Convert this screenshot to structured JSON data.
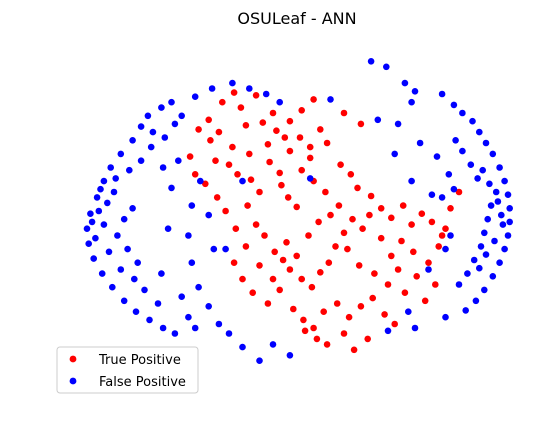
{
  "chart_data": {
    "type": "scatter",
    "title": "OSULeaf - ANN",
    "xlabel": "",
    "ylabel": "",
    "axes_visible": false,
    "grid": false,
    "legend_position": "bottom-left",
    "series": [
      {
        "name": "True Positive",
        "color": "#ff0000",
        "points": [
          [
            -0.42,
            0.88
          ],
          [
            -0.31,
            0.84
          ],
          [
            -0.28,
            0.71
          ],
          [
            -0.18,
            0.73
          ],
          [
            -0.1,
            0.67
          ],
          [
            -0.05,
            0.62
          ],
          [
            0.04,
            0.62
          ],
          [
            0.1,
            0.55
          ],
          [
            0.16,
            0.68
          ],
          [
            0.2,
            0.58
          ],
          [
            -0.49,
            0.6
          ],
          [
            -0.46,
            0.45
          ],
          [
            -0.38,
            0.42
          ],
          [
            -0.33,
            0.35
          ],
          [
            -0.25,
            0.31
          ],
          [
            -0.14,
            0.44
          ],
          [
            -0.08,
            0.36
          ],
          [
            -0.07,
            0.27
          ],
          [
            -0.03,
            0.18
          ],
          [
            0.02,
            0.11
          ],
          [
            -0.61,
            0.48
          ],
          [
            -0.58,
            0.35
          ],
          [
            -0.52,
            0.28
          ],
          [
            -0.2,
            0.22
          ],
          [
            -0.27,
            0.12
          ],
          [
            -0.22,
            -0.02
          ],
          [
            -0.17,
            -0.1
          ],
          [
            -0.11,
            -0.22
          ],
          [
            -0.06,
            -0.28
          ],
          [
            -0.02,
            -0.35
          ],
          [
            0.05,
            -0.42
          ],
          [
            0.11,
            -0.48
          ],
          [
            0.16,
            -0.37
          ],
          [
            0.21,
            -0.3
          ],
          [
            0.25,
            -0.18
          ],
          [
            0.3,
            -0.08
          ],
          [
            0.35,
            0.02
          ],
          [
            0.41,
            -0.05
          ],
          [
            0.45,
            0.05
          ],
          [
            0.52,
            -0.12
          ],
          [
            0.58,
            -0.25
          ],
          [
            0.62,
            -0.35
          ],
          [
            0.66,
            -0.52
          ],
          [
            0.73,
            -0.4
          ],
          [
            0.8,
            -0.3
          ],
          [
            0.86,
            -0.18
          ],
          [
            0.9,
            -0.05
          ],
          [
            0.93,
            0.1
          ],
          [
            0.98,
            0.22
          ],
          [
            -0.35,
            -0.3
          ],
          [
            -0.3,
            -0.42
          ],
          [
            -0.24,
            -0.52
          ],
          [
            -0.15,
            -0.6
          ],
          [
            -0.08,
            -0.5
          ],
          [
            0.0,
            -0.64
          ],
          [
            0.06,
            -0.72
          ],
          [
            0.12,
            -0.78
          ],
          [
            0.18,
            -0.66
          ],
          [
            0.26,
            -0.6
          ],
          [
            0.33,
            -0.7
          ],
          [
            0.4,
            -0.62
          ],
          [
            0.47,
            -0.56
          ],
          [
            0.54,
            -0.68
          ],
          [
            0.6,
            -0.75
          ],
          [
            0.07,
            -0.8
          ],
          [
            0.14,
            -0.86
          ],
          [
            0.2,
            -0.9
          ],
          [
            0.3,
            -0.82
          ],
          [
            0.36,
            -0.94
          ],
          [
            0.44,
            -0.86
          ],
          [
            0.05,
            0.82
          ],
          [
            0.12,
            0.9
          ],
          [
            -0.12,
            0.8
          ],
          [
            -0.02,
            0.74
          ],
          [
            0.28,
            0.42
          ],
          [
            0.34,
            0.35
          ],
          [
            0.38,
            0.25
          ],
          [
            0.46,
            0.19
          ],
          [
            0.52,
            0.1
          ],
          [
            0.58,
            0.03
          ],
          [
            0.65,
            0.12
          ],
          [
            0.7,
            -0.02
          ],
          [
            0.76,
            0.06
          ],
          [
            0.82,
            0.0
          ],
          [
            0.88,
            -0.1
          ],
          [
            -0.45,
            0.18
          ],
          [
            -0.4,
            0.08
          ],
          [
            -0.34,
            -0.05
          ],
          [
            -0.28,
            -0.18
          ],
          [
            -0.2,
            -0.32
          ],
          [
            -0.12,
            -0.42
          ],
          [
            -0.04,
            -0.15
          ],
          [
            0.02,
            -0.25
          ],
          [
            0.09,
            -0.1
          ],
          [
            0.15,
            0.0
          ],
          [
            0.22,
            0.05
          ],
          [
            0.27,
            0.12
          ],
          [
            0.32,
            -0.2
          ],
          [
            0.39,
            -0.32
          ],
          [
            0.48,
            -0.38
          ],
          [
            0.56,
            -0.46
          ],
          [
            0.64,
            -0.14
          ],
          [
            0.71,
            -0.22
          ],
          [
            0.78,
            -0.58
          ],
          [
            0.84,
            -0.46
          ],
          [
            -0.36,
            0.55
          ],
          [
            -0.26,
            0.5
          ],
          [
            -0.15,
            0.57
          ],
          [
            -0.22,
            0.93
          ],
          [
            -0.35,
            0.95
          ],
          [
            -0.5,
            0.75
          ],
          [
            -0.56,
            0.68
          ],
          [
            -0.44,
            0.66
          ],
          [
            0.3,
            0.8
          ],
          [
            0.4,
            0.72
          ],
          [
            0.05,
            0.38
          ],
          [
            0.12,
            0.3
          ],
          [
            0.19,
            0.22
          ],
          [
            0.1,
            0.47
          ],
          [
            -0.02,
            0.52
          ]
        ]
      },
      {
        "name": "False Positive",
        "color": "#0000ff",
        "points": [
          [
            -0.86,
            0.78
          ],
          [
            -0.78,
            0.84
          ],
          [
            -0.72,
            0.88
          ],
          [
            -0.9,
            0.7
          ],
          [
            -0.95,
            0.6
          ],
          [
            -1.02,
            0.5
          ],
          [
            -1.08,
            0.4
          ],
          [
            -1.12,
            0.3
          ],
          [
            -1.16,
            0.18
          ],
          [
            -1.2,
            0.06
          ],
          [
            -1.22,
            -0.05
          ],
          [
            -1.21,
            -0.16
          ],
          [
            -1.18,
            -0.27
          ],
          [
            -1.13,
            -0.38
          ],
          [
            -1.07,
            -0.48
          ],
          [
            -1.0,
            -0.58
          ],
          [
            -0.93,
            -0.66
          ],
          [
            -0.85,
            -0.72
          ],
          [
            -0.77,
            -0.78
          ],
          [
            -0.7,
            -0.82
          ],
          [
            -1.15,
            0.08
          ],
          [
            -1.12,
            -0.02
          ],
          [
            -1.1,
            0.14
          ],
          [
            -1.06,
            0.22
          ],
          [
            -1.04,
            -0.1
          ],
          [
            -1.0,
            0.02
          ],
          [
            -0.98,
            -0.2
          ],
          [
            -0.95,
            0.1
          ],
          [
            -0.92,
            -0.3
          ],
          [
            -1.17,
            -0.12
          ],
          [
            -1.19,
            0.0
          ],
          [
            -1.14,
            0.24
          ],
          [
            -1.09,
            -0.22
          ],
          [
            -1.05,
            0.32
          ],
          [
            -1.02,
            -0.35
          ],
          [
            -0.97,
            0.38
          ],
          [
            -0.94,
            -0.42
          ],
          [
            -0.9,
            0.45
          ],
          [
            -0.88,
            -0.5
          ],
          [
            -0.84,
            0.55
          ],
          [
            -0.8,
            -0.6
          ],
          [
            -0.76,
            0.62
          ],
          [
            -0.83,
            0.66
          ],
          [
            -0.7,
            0.72
          ],
          [
            -0.66,
            0.78
          ],
          [
            -0.62,
            -0.7
          ],
          [
            -0.58,
            -0.78
          ],
          [
            -0.55,
            0.3
          ],
          [
            -0.6,
            0.12
          ],
          [
            -0.62,
            -0.1
          ],
          [
            -0.6,
            -0.3
          ],
          [
            -0.56,
            -0.48
          ],
          [
            -0.5,
            -0.62
          ],
          [
            -0.44,
            -0.75
          ],
          [
            -0.38,
            -0.82
          ],
          [
            -0.3,
            -0.92
          ],
          [
            -0.2,
            -1.02
          ],
          [
            -0.5,
            0.05
          ],
          [
            -0.47,
            -0.2
          ],
          [
            -0.72,
            0.25
          ],
          [
            -0.74,
            -0.05
          ],
          [
            -0.77,
            0.4
          ],
          [
            -0.78,
            -0.38
          ],
          [
            -0.68,
            0.45
          ],
          [
            -0.66,
            -0.55
          ],
          [
            -0.58,
            0.92
          ],
          [
            -0.48,
            0.98
          ],
          [
            -0.36,
            1.02
          ],
          [
            -0.26,
            0.98
          ],
          [
            -0.16,
            0.94
          ],
          [
            -0.08,
            0.88
          ],
          [
            0.46,
            1.18
          ],
          [
            0.55,
            1.14
          ],
          [
            0.66,
            1.02
          ],
          [
            0.72,
            0.96
          ],
          [
            0.7,
            0.88
          ],
          [
            0.88,
            0.94
          ],
          [
            0.95,
            0.86
          ],
          [
            1.0,
            0.8
          ],
          [
            1.06,
            0.74
          ],
          [
            1.1,
            0.66
          ],
          [
            1.14,
            0.58
          ],
          [
            1.18,
            0.5
          ],
          [
            1.22,
            0.4
          ],
          [
            1.25,
            0.3
          ],
          [
            1.27,
            0.2
          ],
          [
            1.28,
            0.1
          ],
          [
            1.28,
            0.0
          ],
          [
            1.27,
            -0.1
          ],
          [
            1.25,
            -0.2
          ],
          [
            1.22,
            -0.3
          ],
          [
            1.18,
            -0.4
          ],
          [
            1.13,
            -0.5
          ],
          [
            1.08,
            -0.58
          ],
          [
            1.02,
            -0.65
          ],
          [
            1.2,
            0.22
          ],
          [
            1.17,
            0.12
          ],
          [
            1.15,
            0.02
          ],
          [
            1.13,
            -0.08
          ],
          [
            1.11,
            -0.18
          ],
          [
            1.09,
            0.32
          ],
          [
            1.07,
            -0.28
          ],
          [
            1.05,
            0.42
          ],
          [
            1.03,
            -0.38
          ],
          [
            1.0,
            0.52
          ],
          [
            0.98,
            -0.46
          ],
          [
            0.96,
            0.6
          ],
          [
            0.92,
            0.35
          ],
          [
            0.9,
            -0.2
          ],
          [
            0.88,
            0.18
          ],
          [
            1.23,
            0.05
          ],
          [
            1.24,
            -0.02
          ],
          [
            1.21,
            0.15
          ],
          [
            1.19,
            -0.14
          ],
          [
            1.16,
            0.28
          ],
          [
            1.14,
            -0.24
          ],
          [
            1.12,
            0.38
          ],
          [
            1.1,
            -0.34
          ],
          [
            0.95,
            0.24
          ],
          [
            0.93,
            -0.1
          ],
          [
            0.85,
            0.48
          ],
          [
            0.82,
            0.2
          ],
          [
            0.8,
            -0.35
          ],
          [
            0.75,
            0.58
          ],
          [
            0.7,
            0.3
          ],
          [
            0.62,
            0.72
          ],
          [
            0.6,
            0.5
          ],
          [
            0.56,
            -0.8
          ],
          [
            0.9,
            -0.7
          ],
          [
            0.72,
            -0.78
          ],
          [
            0.1,
            0.32
          ],
          [
            0.22,
            0.9
          ],
          [
            -0.4,
            -0.2
          ],
          [
            -0.3,
            0.3
          ],
          [
            0.5,
            0.75
          ],
          [
            0.68,
            -0.66
          ],
          [
            -0.02,
            -0.98
          ],
          [
            -0.12,
            -0.9
          ]
        ]
      }
    ],
    "xlim": [
      -1.35,
      1.4
    ],
    "ylim": [
      -1.25,
      1.3
    ]
  }
}
